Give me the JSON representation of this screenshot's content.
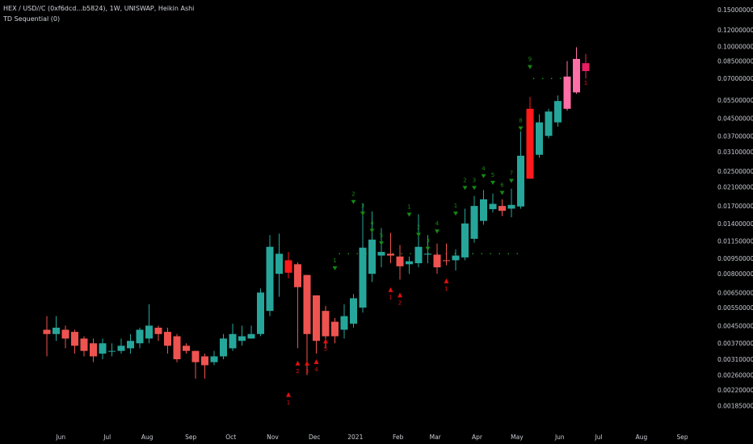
{
  "header": {
    "title": "HEX / USD//C (0xf6dcd...b5824), 1W, UNISWAP, Heikin Ashi",
    "indicator": "TD Sequential (0)"
  },
  "colors": {
    "background": "#000000",
    "up": "#26a69a",
    "down": "#ef5350",
    "strong_down": "#ff1a1a",
    "pink": "#ff6fa8",
    "magenta": "#e91e63",
    "td_green": "#138a13",
    "td_red": "#e01010",
    "dot_green": "#18a018"
  },
  "chart_data": {
    "type": "candlestick",
    "style": "heikin-ashi",
    "y_scale": "log",
    "ylim": [
      0.0017,
      0.16
    ],
    "y_ticks": [
      "0.15000000",
      "0.12000000",
      "0.10000000",
      "0.08500000",
      "0.07000000",
      "0.05500000",
      "0.04500000",
      "0.03700000",
      "0.03100000",
      "0.02500000",
      "0.02100000",
      "0.01700000",
      "0.01400000",
      "0.01150000",
      "0.00950000",
      "0.00800000",
      "0.00650000",
      "0.00550000",
      "0.00450000",
      "0.00370000",
      "0.00310000",
      "0.00260000",
      "0.00220000",
      "0.00185000"
    ],
    "x_ticks": [
      {
        "label": "Jun",
        "bar": 1.5
      },
      {
        "label": "Jul",
        "bar": 6.5
      },
      {
        "label": "Aug",
        "bar": 10.8
      },
      {
        "label": "Sep",
        "bar": 15.5
      },
      {
        "label": "Oct",
        "bar": 19.8
      },
      {
        "label": "Nov",
        "bar": 24.3
      },
      {
        "label": "Dec",
        "bar": 28.8
      },
      {
        "label": "2021",
        "bar": 33.2
      },
      {
        "label": "Feb",
        "bar": 37.8
      },
      {
        "label": "Mar",
        "bar": 41.8
      },
      {
        "label": "Apr",
        "bar": 46.3
      },
      {
        "label": "May",
        "bar": 50.6
      },
      {
        "label": "Jun",
        "bar": 55.2
      },
      {
        "label": "Jul",
        "bar": 59.4
      },
      {
        "label": "Aug",
        "bar": 64.0
      },
      {
        "label": "Sep",
        "bar": 68.4
      }
    ],
    "candles": [
      {
        "o": 0.0043,
        "c": 0.0041,
        "h": 0.005,
        "l": 0.0032,
        "col": "down"
      },
      {
        "o": 0.0041,
        "c": 0.0044,
        "h": 0.005,
        "l": 0.0038,
        "col": "up"
      },
      {
        "o": 0.0043,
        "c": 0.0039,
        "h": 0.0045,
        "l": 0.0035,
        "col": "down"
      },
      {
        "o": 0.0042,
        "c": 0.0036,
        "h": 0.0043,
        "l": 0.0033,
        "col": "down"
      },
      {
        "o": 0.0039,
        "c": 0.0034,
        "h": 0.004,
        "l": 0.0032,
        "col": "down"
      },
      {
        "o": 0.0037,
        "c": 0.0032,
        "h": 0.0039,
        "l": 0.003,
        "col": "down"
      },
      {
        "o": 0.0033,
        "c": 0.0037,
        "h": 0.0039,
        "l": 0.0031,
        "col": "up"
      },
      {
        "o": 0.0034,
        "c": 0.0034,
        "h": 0.0037,
        "l": 0.0032,
        "col": "up"
      },
      {
        "o": 0.0034,
        "c": 0.0036,
        "h": 0.0039,
        "l": 0.0033,
        "col": "up"
      },
      {
        "o": 0.0035,
        "c": 0.0038,
        "h": 0.0041,
        "l": 0.0033,
        "col": "up"
      },
      {
        "o": 0.0037,
        "c": 0.0043,
        "h": 0.0044,
        "l": 0.0035,
        "col": "up"
      },
      {
        "o": 0.0039,
        "c": 0.0045,
        "h": 0.0057,
        "l": 0.0037,
        "col": "up"
      },
      {
        "o": 0.0044,
        "c": 0.0041,
        "h": 0.0045,
        "l": 0.0038,
        "col": "down"
      },
      {
        "o": 0.0042,
        "c": 0.0036,
        "h": 0.0044,
        "l": 0.0033,
        "col": "down"
      },
      {
        "o": 0.004,
        "c": 0.0031,
        "h": 0.0041,
        "l": 0.003,
        "col": "down"
      },
      {
        "o": 0.0036,
        "c": 0.0034,
        "h": 0.0037,
        "l": 0.0033,
        "col": "down"
      },
      {
        "o": 0.0034,
        "c": 0.003,
        "h": 0.0034,
        "l": 0.0025,
        "col": "down"
      },
      {
        "o": 0.0032,
        "c": 0.0029,
        "h": 0.0033,
        "l": 0.0025,
        "col": "down"
      },
      {
        "o": 0.003,
        "c": 0.0032,
        "h": 0.0034,
        "l": 0.0029,
        "col": "up"
      },
      {
        "o": 0.0032,
        "c": 0.0039,
        "h": 0.0041,
        "l": 0.0031,
        "col": "up"
      },
      {
        "o": 0.0035,
        "c": 0.0041,
        "h": 0.0046,
        "l": 0.0034,
        "col": "up"
      },
      {
        "o": 0.0038,
        "c": 0.004,
        "h": 0.0045,
        "l": 0.0036,
        "col": "up"
      },
      {
        "o": 0.0039,
        "c": 0.0041,
        "h": 0.0045,
        "l": 0.0039,
        "col": "up"
      },
      {
        "o": 0.0041,
        "c": 0.0065,
        "h": 0.0068,
        "l": 0.004,
        "col": "up"
      },
      {
        "o": 0.0053,
        "c": 0.0108,
        "h": 0.0123,
        "l": 0.005,
        "col": "up"
      },
      {
        "o": 0.008,
        "c": 0.01,
        "h": 0.0125,
        "l": 0.0062,
        "col": "up"
      },
      {
        "o": 0.0093,
        "c": 0.0081,
        "h": 0.0102,
        "l": 0.0076,
        "col": "strong_down"
      },
      {
        "o": 0.0089,
        "c": 0.0069,
        "h": 0.0091,
        "l": 0.0035,
        "col": "down"
      },
      {
        "o": 0.0079,
        "c": 0.0041,
        "h": 0.0079,
        "l": 0.0026,
        "col": "down"
      },
      {
        "o": 0.0063,
        "c": 0.0038,
        "h": 0.0063,
        "l": 0.0033,
        "col": "down"
      },
      {
        "o": 0.0053,
        "c": 0.004,
        "h": 0.0056,
        "l": 0.0035,
        "col": "down"
      },
      {
        "o": 0.0047,
        "c": 0.004,
        "h": 0.0049,
        "l": 0.0037,
        "col": "down"
      },
      {
        "o": 0.0043,
        "c": 0.005,
        "h": 0.0057,
        "l": 0.0039,
        "col": "up"
      },
      {
        "o": 0.0046,
        "c": 0.0061,
        "h": 0.0064,
        "l": 0.0044,
        "col": "up"
      },
      {
        "o": 0.0055,
        "c": 0.0107,
        "h": 0.0175,
        "l": 0.0052,
        "col": "up"
      },
      {
        "o": 0.008,
        "c": 0.0117,
        "h": 0.016,
        "l": 0.0073,
        "col": "up"
      },
      {
        "o": 0.0098,
        "c": 0.0102,
        "h": 0.0133,
        "l": 0.0086,
        "col": "up"
      },
      {
        "o": 0.01,
        "c": 0.0098,
        "h": 0.0126,
        "l": 0.009,
        "col": "down"
      },
      {
        "o": 0.0097,
        "c": 0.0087,
        "h": 0.011,
        "l": 0.0075,
        "col": "down"
      },
      {
        "o": 0.0092,
        "c": 0.0089,
        "h": 0.0097,
        "l": 0.008,
        "col": "up"
      },
      {
        "o": 0.009,
        "c": 0.0108,
        "h": 0.0155,
        "l": 0.0086,
        "col": "up"
      },
      {
        "o": 0.0099,
        "c": 0.01,
        "h": 0.0123,
        "l": 0.009,
        "col": "up"
      },
      {
        "o": 0.0099,
        "c": 0.0086,
        "h": 0.0112,
        "l": 0.008,
        "col": "down"
      },
      {
        "o": 0.0093,
        "c": 0.0093,
        "h": 0.0112,
        "l": 0.0088,
        "col": "down"
      },
      {
        "o": 0.0093,
        "c": 0.0098,
        "h": 0.0105,
        "l": 0.0083,
        "col": "up"
      },
      {
        "o": 0.0096,
        "c": 0.014,
        "h": 0.0165,
        "l": 0.0093,
        "col": "up"
      },
      {
        "o": 0.0118,
        "c": 0.017,
        "h": 0.019,
        "l": 0.0113,
        "col": "up"
      },
      {
        "o": 0.0144,
        "c": 0.0183,
        "h": 0.0203,
        "l": 0.0138,
        "col": "up"
      },
      {
        "o": 0.0164,
        "c": 0.0174,
        "h": 0.0195,
        "l": 0.0158,
        "col": "up"
      },
      {
        "o": 0.017,
        "c": 0.0161,
        "h": 0.0183,
        "l": 0.0152,
        "col": "down"
      },
      {
        "o": 0.0165,
        "c": 0.0172,
        "h": 0.0206,
        "l": 0.015,
        "col": "up"
      },
      {
        "o": 0.0169,
        "c": 0.0297,
        "h": 0.039,
        "l": 0.0165,
        "col": "up"
      },
      {
        "o": 0.05,
        "c": 0.023,
        "h": 0.057,
        "l": 0.023,
        "col": "strong_down"
      },
      {
        "o": 0.03,
        "c": 0.043,
        "h": 0.047,
        "l": 0.029,
        "col": "up"
      },
      {
        "o": 0.037,
        "c": 0.0485,
        "h": 0.05,
        "l": 0.036,
        "col": "up"
      },
      {
        "o": 0.043,
        "c": 0.0545,
        "h": 0.058,
        "l": 0.041,
        "col": "up"
      },
      {
        "o": 0.05,
        "c": 0.0715,
        "h": 0.085,
        "l": 0.049,
        "col": "pink"
      },
      {
        "o": 0.06,
        "c": 0.087,
        "h": 0.099,
        "l": 0.059,
        "col": "pink"
      },
      {
        "o": 0.083,
        "c": 0.076,
        "h": 0.092,
        "l": 0.07,
        "col": "magenta"
      }
    ],
    "td_labels": [
      {
        "bar": 26,
        "text": "1",
        "side": "below",
        "arrow": true,
        "y": 0.00215
      },
      {
        "bar": 27,
        "text": "2",
        "side": "below",
        "arrow": true,
        "y": 0.00305
      },
      {
        "bar": 28,
        "text": "3",
        "side": "below",
        "arrow": true,
        "y": 0.00305
      },
      {
        "bar": 29,
        "text": "4",
        "side": "below",
        "arrow": true,
        "y": 0.0031
      },
      {
        "bar": 30,
        "text": "5",
        "side": "below",
        "arrow": true,
        "y": 0.0039
      },
      {
        "bar": 31,
        "text": "1",
        "side": "above",
        "arrow": true,
        "y": 0.0091
      },
      {
        "bar": 33,
        "text": "2",
        "side": "above",
        "arrow": true,
        "y": 0.019
      },
      {
        "bar": 34,
        "text": "3",
        "side": "above",
        "arrow": true,
        "y": 0.0167
      },
      {
        "bar": 35,
        "text": "4",
        "side": "above",
        "arrow": true,
        "y": 0.0138
      },
      {
        "bar": 36,
        "text": "5",
        "side": "above",
        "arrow": true,
        "y": 0.012
      },
      {
        "bar": 37,
        "text": "1",
        "side": "below",
        "arrow": true,
        "y": 0.0069
      },
      {
        "bar": 38,
        "text": "2",
        "side": "below",
        "arrow": true,
        "y": 0.0065
      },
      {
        "bar": 39,
        "text": "1",
        "side": "above",
        "arrow": true,
        "y": 0.0165
      },
      {
        "bar": 40,
        "text": "2",
        "side": "above",
        "arrow": true,
        "y": 0.0132
      },
      {
        "bar": 41,
        "text": "3",
        "side": "above",
        "arrow": true,
        "y": 0.0113
      },
      {
        "bar": 42,
        "text": "4",
        "side": "above",
        "arrow": true,
        "y": 0.0137
      },
      {
        "bar": 43,
        "text": "1",
        "side": "below",
        "arrow": true,
        "y": 0.0076
      },
      {
        "bar": 44,
        "text": "1",
        "side": "above",
        "arrow": true,
        "y": 0.0167
      },
      {
        "bar": 45,
        "text": "2",
        "side": "above",
        "arrow": true,
        "y": 0.0222
      },
      {
        "bar": 46,
        "text": "3",
        "side": "above",
        "arrow": true,
        "y": 0.0222
      },
      {
        "bar": 47,
        "text": "4",
        "side": "above",
        "arrow": true,
        "y": 0.0253
      },
      {
        "bar": 48,
        "text": "5",
        "side": "above",
        "arrow": true,
        "y": 0.0235
      },
      {
        "bar": 49,
        "text": "6",
        "side": "above",
        "arrow": true,
        "y": 0.021
      },
      {
        "bar": 50,
        "text": "7",
        "side": "above",
        "arrow": true,
        "y": 0.024
      },
      {
        "bar": 51,
        "text": "8",
        "side": "above",
        "arrow": true,
        "y": 0.043
      },
      {
        "bar": 52,
        "text": "9",
        "side": "above",
        "arrow": true,
        "y": 0.085
      },
      {
        "bar": 58,
        "text": "1",
        "side": "below",
        "arrow": false,
        "y": 0.069
      }
    ],
    "support_dots": {
      "y": 0.01,
      "from_bar": 31.5,
      "to_bar": 51.2,
      "step_px": 11
    },
    "resist_dots": {
      "y": 0.07,
      "from_bar": 52.4,
      "to_bar": 56.2,
      "step_px": 11
    }
  }
}
